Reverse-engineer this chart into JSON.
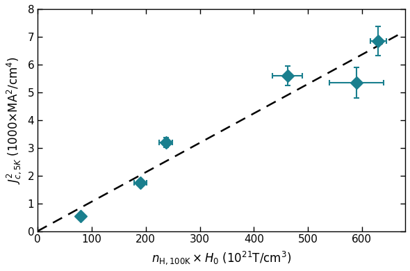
{
  "x": [
    80,
    190,
    237,
    462,
    590,
    630
  ],
  "y": [
    0.55,
    1.75,
    3.2,
    5.6,
    5.35,
    6.85
  ],
  "xerr": [
    0,
    12,
    12,
    28,
    50,
    15
  ],
  "yerr": [
    0,
    0.1,
    0.18,
    0.35,
    0.55,
    0.52
  ],
  "fit_x": [
    0,
    670
  ],
  "fit_y": [
    0.0,
    7.1
  ],
  "marker_color": "#1a7f8e",
  "line_color": "black",
  "xlim": [
    0,
    680
  ],
  "ylim": [
    0,
    8
  ],
  "xticks": [
    0,
    100,
    200,
    300,
    400,
    500,
    600
  ],
  "yticks": [
    0,
    1,
    2,
    3,
    4,
    5,
    6,
    7,
    8
  ],
  "xlabel": "$n_{\\mathrm{H,100K}}\\!\\times\\!H_0\\ (10^{21}\\mathrm{T/cm^3})$",
  "ylabel": "$J^2_{c,\\mathrm{5K}}\\ (1000{\\times}\\mathrm{MA^2/cm^4})$",
  "marker_size": 9,
  "fit_linewidth": 1.8,
  "elinewidth": 1.5,
  "capsize": 3,
  "capthick": 1.5,
  "tick_labelsize": 11,
  "label_fontsize": 12
}
